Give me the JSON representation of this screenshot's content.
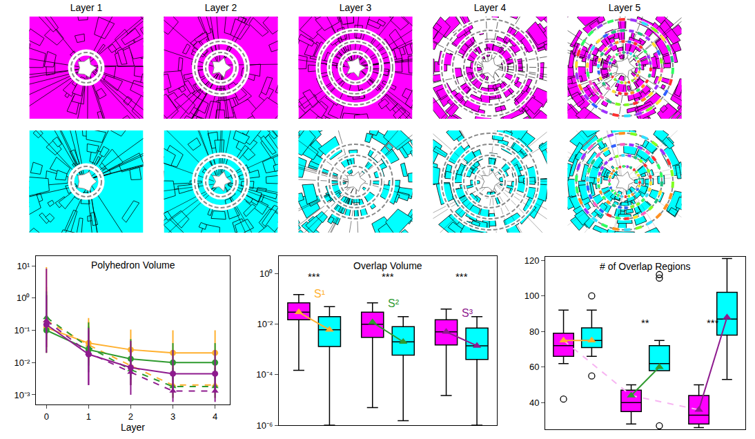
{
  "panels": {
    "titles": [
      "Layer 1",
      "Layer 2",
      "Layer 3",
      "Layer 4",
      "Layer 5"
    ],
    "rows": [
      {
        "color": "#ff00ff"
      },
      {
        "color": "#00ffff"
      }
    ]
  },
  "chart_data": [
    {
      "type": "line",
      "title": "Polyhedron Volume",
      "x_label": "Layer",
      "log": "y",
      "grid": false,
      "xlim": [
        -0.25,
        4.35
      ],
      "xticks": [
        0,
        1,
        2,
        3,
        4
      ],
      "ylim": [
        0.0005,
        20
      ],
      "yticks": [
        {
          "value": 0.001,
          "label": "10⁻³"
        },
        {
          "value": 0.01,
          "label": "10⁻²"
        },
        {
          "value": 0.1,
          "label": "10⁻¹"
        },
        {
          "value": 1,
          "label": "10⁰"
        },
        {
          "value": 10,
          "label": "10¹"
        }
      ],
      "x": [
        0,
        1,
        2,
        3,
        4
      ],
      "series": [
        {
          "color": "#ffb02e",
          "line_style": "solid",
          "marker": "circle",
          "values": [
            0.12,
            0.04,
            0.025,
            0.02,
            0.02
          ],
          "error_plus": [
            9,
            0.2,
            0.08,
            0.08,
            0.08
          ],
          "error_minus": [
            0.1,
            0.03,
            0.02,
            0.015,
            0.015
          ]
        },
        {
          "color": "#ffb02e",
          "line_style": "dashed",
          "marker": "triangle-up",
          "values": [
            0.2,
            0.035,
            0.008,
            0.002,
            0.002
          ],
          "error_plus": [
            2,
            0.15,
            0.03,
            0.006,
            0.006
          ],
          "error_minus": [
            0.17,
            0.025,
            0.006,
            0.0012,
            0.0012
          ]
        },
        {
          "color": "#2e9a2e",
          "line_style": "solid",
          "marker": "circle",
          "values": [
            0.1,
            0.025,
            0.013,
            0.01,
            0.01
          ],
          "error_plus": [
            1.5,
            0.15,
            0.04,
            0.03,
            0.03
          ],
          "error_minus": [
            0.08,
            0.02,
            0.01,
            0.007,
            0.007
          ]
        },
        {
          "color": "#2e9a2e",
          "line_style": "dashed",
          "marker": "triangle-up",
          "values": [
            0.25,
            0.03,
            0.006,
            0.0018,
            0.0018
          ],
          "error_plus": [
            1,
            0.1,
            0.02,
            0.005,
            0.005
          ],
          "error_minus": [
            0.2,
            0.022,
            0.004,
            0.001,
            0.001
          ]
        },
        {
          "color": "#8e1a8e",
          "line_style": "solid",
          "marker": "circle",
          "values": [
            0.15,
            0.018,
            0.007,
            0.0045,
            0.0045
          ],
          "error_plus": [
            8,
            0.1,
            0.04,
            0.02,
            0.02
          ],
          "error_minus": [
            0.13,
            0.016,
            0.005,
            0.003,
            0.003
          ]
        },
        {
          "color": "#8e1a8e",
          "line_style": "dashed",
          "marker": "triangle-up",
          "values": [
            0.2,
            0.02,
            0.005,
            0.0013,
            0.0013
          ],
          "error_plus": [
            1,
            0.08,
            0.02,
            0.003,
            0.003
          ],
          "error_minus": [
            0.17,
            0.018,
            0.004,
            0.0007,
            0.0007
          ]
        }
      ]
    },
    {
      "type": "box",
      "title": "Overlap Volume",
      "log": "y",
      "grid": false,
      "tick_labels": "y",
      "ylim": [
        1e-06,
        5
      ],
      "yticks": [
        {
          "value": 1e-06,
          "label": "10⁻⁶"
        },
        {
          "value": 0.0001,
          "label": "10⁻⁴"
        },
        {
          "value": 0.01,
          "label": "10⁻²"
        },
        {
          "value": 1,
          "label": "10⁰"
        }
      ],
      "groups": [
        {
          "label": "S¹",
          "color": "#ffb02e",
          "significance": "***",
          "boxes": [
            {
              "color": "#ff00ff",
              "lowerfence": 0.00015,
              "q1": 0.015,
              "median": 0.03,
              "q3": 0.07,
              "upperfence": 0.15,
              "mean": 0.03
            },
            {
              "color": "#00ffff",
              "lowerfence": 1e-06,
              "q1": 0.0013,
              "median": 0.006,
              "q3": 0.02,
              "upperfence": 0.05,
              "mean": 0.006
            }
          ]
        },
        {
          "label": "S²",
          "color": "#2e9a2e",
          "significance": "***",
          "boxes": [
            {
              "color": "#ff00ff",
              "lowerfence": 5e-06,
              "q1": 0.003,
              "median": 0.01,
              "q3": 0.03,
              "upperfence": 0.07,
              "mean": 0.012
            },
            {
              "color": "#00ffff",
              "lowerfence": 1.5e-06,
              "q1": 0.0006,
              "median": 0.002,
              "q3": 0.008,
              "upperfence": 0.02,
              "mean": 0.002
            }
          ]
        },
        {
          "label": "S³",
          "color": "#8e1a8e",
          "significance": "***",
          "boxes": [
            {
              "color": "#ff00ff",
              "lowerfence": 1.5e-05,
              "q1": 0.0015,
              "median": 0.005,
              "q3": 0.015,
              "upperfence": 0.04,
              "mean": 0.005
            },
            {
              "color": "#00ffff",
              "lowerfence": 1e-06,
              "q1": 0.0004,
              "median": 0.0014,
              "q3": 0.007,
              "upperfence": 0.02,
              "mean": 0.0014
            }
          ]
        }
      ]
    },
    {
      "type": "box",
      "title": "# of Overlap Regions",
      "grid": false,
      "tick_labels": "y",
      "ylim": [
        25,
        122
      ],
      "yticks": [
        40,
        60,
        80,
        100,
        120
      ],
      "groups": [
        {
          "color": "#ffb02e",
          "boxes": [
            {
              "color": "#ff00ff",
              "lowerfence": 62,
              "q1": 66,
              "median": 72,
              "q3": 79,
              "upperfence": 92,
              "mean": 75,
              "outliers": [
                42
              ]
            },
            {
              "color": "#00ffff",
              "lowerfence": 66,
              "q1": 71,
              "median": 75,
              "q3": 82,
              "upperfence": 92,
              "mean": 75,
              "outliers": [
                100,
                55
              ]
            }
          ]
        },
        {
          "color": "#2e9a2e",
          "significance": "**",
          "boxes": [
            {
              "color": "#ff00ff",
              "lowerfence": 28,
              "q1": 35,
              "median": 40,
              "q3": 47,
              "upperfence": 50,
              "mean": 44
            },
            {
              "color": "#00ffff",
              "lowerfence": 58,
              "q1": 58,
              "median": 62,
              "q3": 72,
              "upperfence": 75,
              "mean": 60,
              "outliers": [
                112,
                110,
                27
              ]
            }
          ]
        },
        {
          "color": "#8e1a8e",
          "significance": "***",
          "boxes": [
            {
              "color": "#ff00ff",
              "lowerfence": 26,
              "q1": 28,
              "median": 33,
              "q3": 44,
              "upperfence": 50,
              "mean": 36
            },
            {
              "color": "#00ffff",
              "lowerfence": 53,
              "q1": 78,
              "median": 87,
              "q3": 102,
              "upperfence": 121,
              "mean": 88
            }
          ]
        }
      ],
      "series": [
        {
          "color": "#f7b4f2",
          "line_style": "dashed",
          "values": [
            75,
            44,
            36
          ]
        }
      ]
    }
  ]
}
